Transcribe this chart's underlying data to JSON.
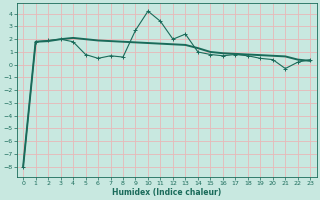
{
  "xlabel": "Humidex (Indice chaleur)",
  "ylabel": "",
  "bg_color": "#c8e8e0",
  "grid_color": "#e8b8b8",
  "line_color": "#1a6b5a",
  "xlim": [
    -0.5,
    23.5
  ],
  "ylim": [
    -8.8,
    4.8
  ],
  "xticks": [
    0,
    1,
    2,
    3,
    4,
    5,
    6,
    7,
    8,
    9,
    10,
    11,
    12,
    13,
    14,
    15,
    16,
    17,
    18,
    19,
    20,
    21,
    22,
    23
  ],
  "yticks": [
    -8,
    -7,
    -6,
    -5,
    -4,
    -3,
    -2,
    -1,
    0,
    1,
    2,
    3,
    4
  ],
  "line1_x": [
    0,
    1,
    2,
    3,
    4,
    5,
    6,
    7,
    8,
    9,
    10,
    11,
    12,
    13,
    14,
    15,
    16,
    17,
    18,
    19,
    20,
    21,
    22,
    23
  ],
  "line1_y": [
    -8.0,
    1.8,
    1.9,
    2.0,
    1.8,
    0.8,
    0.5,
    0.7,
    0.6,
    2.7,
    4.2,
    3.4,
    2.0,
    2.4,
    1.0,
    0.8,
    0.7,
    0.8,
    0.7,
    0.5,
    0.4,
    -0.3,
    0.2,
    0.4
  ],
  "line2_x": [
    0,
    1,
    2,
    3,
    4,
    5,
    6,
    7,
    8,
    9,
    10,
    11,
    12,
    13,
    14,
    15,
    16,
    17,
    18,
    19,
    20,
    21,
    22,
    23
  ],
  "line2_y": [
    -8.0,
    1.8,
    1.85,
    2.0,
    2.1,
    2.0,
    1.9,
    1.85,
    1.8,
    1.75,
    1.7,
    1.65,
    1.6,
    1.55,
    1.3,
    1.0,
    0.9,
    0.85,
    0.8,
    0.75,
    0.7,
    0.65,
    0.4,
    0.3
  ]
}
